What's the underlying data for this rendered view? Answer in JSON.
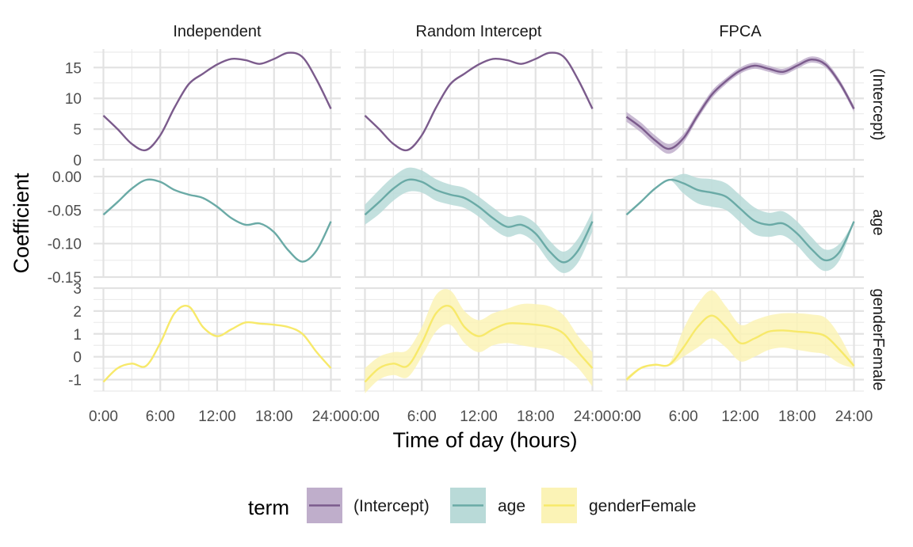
{
  "chart_data": {
    "type": "line",
    "xlabel": "Time of day (hours)",
    "ylabel": "Coefficient",
    "x_ticks": [
      "0:00",
      "6:00",
      "12:00",
      "18:00",
      "24:00"
    ],
    "xlim": [
      0,
      24
    ],
    "columns": [
      "Independent",
      "Random Intercept",
      "FPCA"
    ],
    "rows": [
      {
        "term": "(Intercept)",
        "strip": "(Intercept)",
        "ylim": [
          0,
          18
        ],
        "y_ticks": [
          "0",
          "5",
          "10",
          "15"
        ],
        "y_tick_values": [
          0,
          5,
          10,
          15
        ],
        "color": "#7B5B8C",
        "fill": "#BFAECB"
      },
      {
        "term": "age",
        "strip": "age",
        "ylim": [
          -0.15,
          0.013
        ],
        "y_ticks": [
          "0.00",
          "-0.05",
          "-0.10",
          "-0.15"
        ],
        "y_tick_values": [
          0,
          -0.05,
          -0.1,
          -0.15
        ],
        "color": "#6AAAA6",
        "fill": "#B9DAD8"
      },
      {
        "term": "genderFemale",
        "strip": "genderFemale",
        "ylim": [
          -1.5,
          3
        ],
        "y_ticks": [
          "3",
          "2",
          "1",
          "0",
          "-1"
        ],
        "y_tick_values": [
          3,
          2,
          1,
          0,
          -1
        ],
        "color": "#F7E96A",
        "fill": "#FBF3B6"
      }
    ],
    "x": [
      0,
      1.5,
      3,
      4.5,
      6,
      7.5,
      9,
      10.5,
      12,
      13.5,
      15,
      16.5,
      18,
      19.5,
      21,
      22.5,
      24
    ],
    "panels": [
      {
        "column": "Independent",
        "term": "(Intercept)",
        "mean": [
          7.2,
          5.0,
          2.6,
          1.6,
          4.0,
          8.5,
          12.3,
          14.0,
          15.5,
          16.4,
          16.2,
          15.6,
          16.4,
          17.4,
          16.7,
          13.0,
          8.3
        ],
        "lower": null,
        "upper": null
      },
      {
        "column": "Independent",
        "term": "age",
        "mean": [
          -0.057,
          -0.038,
          -0.018,
          -0.005,
          -0.008,
          -0.02,
          -0.027,
          -0.032,
          -0.045,
          -0.062,
          -0.072,
          -0.07,
          -0.083,
          -0.11,
          -0.127,
          -0.11,
          -0.067
        ],
        "lower": null,
        "upper": null
      },
      {
        "column": "Independent",
        "term": "genderFemale",
        "mean": [
          -1.1,
          -0.5,
          -0.3,
          -0.4,
          0.6,
          1.9,
          2.2,
          1.3,
          0.9,
          1.2,
          1.5,
          1.45,
          1.4,
          1.3,
          1.0,
          0.2,
          -0.5
        ],
        "lower": null,
        "upper": null
      },
      {
        "column": "Random Intercept",
        "term": "(Intercept)",
        "mean": [
          7.2,
          5.0,
          2.6,
          1.6,
          4.0,
          8.5,
          12.3,
          14.0,
          15.5,
          16.4,
          16.2,
          15.6,
          16.4,
          17.4,
          16.7,
          13.0,
          8.3
        ],
        "lower": null,
        "upper": null
      },
      {
        "column": "Random Intercept",
        "term": "age",
        "mean": [
          -0.057,
          -0.038,
          -0.018,
          -0.005,
          -0.008,
          -0.02,
          -0.027,
          -0.032,
          -0.045,
          -0.062,
          -0.075,
          -0.072,
          -0.085,
          -0.112,
          -0.128,
          -0.11,
          -0.067
        ],
        "lower": [
          -0.072,
          -0.056,
          -0.036,
          -0.023,
          -0.024,
          -0.036,
          -0.042,
          -0.047,
          -0.06,
          -0.078,
          -0.09,
          -0.086,
          -0.1,
          -0.128,
          -0.144,
          -0.128,
          -0.082
        ],
        "upper": [
          -0.042,
          -0.02,
          0.0,
          0.013,
          0.009,
          -0.004,
          -0.012,
          -0.017,
          -0.03,
          -0.046,
          -0.06,
          -0.058,
          -0.07,
          -0.096,
          -0.112,
          -0.092,
          -0.052
        ]
      },
      {
        "column": "Random Intercept",
        "term": "genderFemale",
        "mean": [
          -1.1,
          -0.5,
          -0.3,
          -0.4,
          0.6,
          1.9,
          2.2,
          1.3,
          0.9,
          1.2,
          1.45,
          1.45,
          1.4,
          1.3,
          1.0,
          0.2,
          -0.5
        ],
        "lower": [
          -1.6,
          -1.0,
          -0.8,
          -0.9,
          0.0,
          1.1,
          1.4,
          0.6,
          0.2,
          0.5,
          0.6,
          0.5,
          0.4,
          0.3,
          0.0,
          -0.5,
          -1.3
        ],
        "upper": [
          -0.5,
          0.0,
          0.2,
          0.3,
          1.3,
          2.7,
          2.9,
          2.0,
          1.6,
          1.9,
          2.1,
          2.3,
          2.3,
          2.2,
          1.8,
          0.9,
          0.2
        ]
      },
      {
        "column": "FPCA",
        "term": "(Intercept)",
        "mean": [
          7.0,
          5.3,
          3.2,
          1.8,
          3.5,
          7.2,
          10.6,
          12.8,
          14.5,
          15.3,
          14.8,
          14.3,
          15.3,
          16.3,
          15.5,
          12.5,
          8.3
        ],
        "lower": [
          6.2,
          4.5,
          2.4,
          1.0,
          2.8,
          6.6,
          10.0,
          12.3,
          14.0,
          14.8,
          14.3,
          13.8,
          14.8,
          15.8,
          15.0,
          12.0,
          7.8
        ],
        "upper": [
          7.8,
          6.1,
          4.0,
          2.6,
          4.2,
          7.8,
          11.2,
          13.3,
          15.0,
          15.8,
          15.3,
          14.8,
          15.8,
          16.8,
          16.0,
          13.0,
          8.8
        ]
      },
      {
        "column": "FPCA",
        "term": "age",
        "mean": [
          -0.057,
          -0.038,
          -0.018,
          -0.005,
          -0.01,
          -0.02,
          -0.024,
          -0.03,
          -0.048,
          -0.066,
          -0.072,
          -0.07,
          -0.085,
          -0.108,
          -0.125,
          -0.112,
          -0.067
        ],
        "lower": [
          -0.057,
          -0.038,
          -0.018,
          -0.005,
          -0.025,
          -0.04,
          -0.045,
          -0.05,
          -0.068,
          -0.086,
          -0.09,
          -0.088,
          -0.103,
          -0.126,
          -0.141,
          -0.124,
          -0.067
        ],
        "upper": [
          -0.057,
          -0.038,
          -0.018,
          -0.005,
          0.004,
          -0.002,
          -0.004,
          -0.01,
          -0.028,
          -0.046,
          -0.054,
          -0.052,
          -0.067,
          -0.09,
          -0.109,
          -0.1,
          -0.067
        ]
      },
      {
        "column": "FPCA",
        "term": "genderFemale",
        "mean": [
          -1.0,
          -0.5,
          -0.35,
          -0.35,
          0.4,
          1.3,
          1.8,
          1.3,
          0.6,
          0.8,
          1.1,
          1.15,
          1.1,
          1.05,
          0.9,
          0.3,
          -0.4
        ],
        "lower": [
          -1.1,
          -0.55,
          -0.4,
          -0.4,
          0.0,
          0.4,
          0.8,
          0.4,
          -0.2,
          0.0,
          0.3,
          0.4,
          0.3,
          0.2,
          0.1,
          -0.3,
          -0.5
        ],
        "upper": [
          -0.9,
          -0.45,
          -0.3,
          -0.3,
          1.2,
          2.3,
          2.9,
          2.2,
          1.4,
          1.6,
          1.8,
          1.9,
          1.9,
          1.85,
          1.7,
          0.9,
          -0.3
        ]
      }
    ],
    "legend": {
      "title": "term",
      "position": "bottom",
      "entries": [
        "(Intercept)",
        "age",
        "genderFemale"
      ]
    },
    "grid": true
  }
}
